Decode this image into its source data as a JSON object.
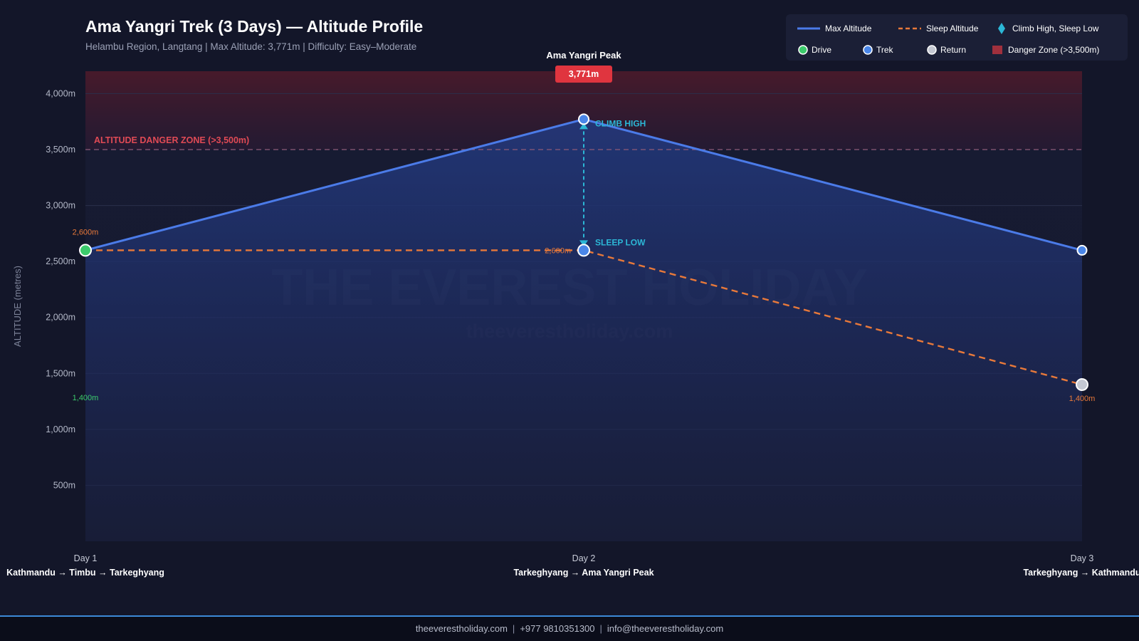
{
  "chart_data": {
    "type": "line",
    "title": "Ama Yangri Trek (3 Days) — Altitude Profile",
    "subtitle": "Helambu Region, Langtang | Max Altitude: 3,771m | Difficulty: Easy–Moderate",
    "ylabel": "ALTITUDE (metres)",
    "ylim": [
      0,
      4200
    ],
    "yticks": [
      500,
      1000,
      1500,
      2000,
      2500,
      3000,
      3500,
      4000
    ],
    "ytick_labels": [
      "500m",
      "1,000m",
      "1,500m",
      "2,000m",
      "2,500m",
      "3,000m",
      "3,500m",
      "4,000m"
    ],
    "grid": true,
    "legend_position": "top-right",
    "categories": [
      "Day 1",
      "Day 2",
      "Day 3"
    ],
    "routes": [
      "Kathmandu → Timbu → Tarkeghyang",
      "Tarkeghyang → Ama Yangri Peak",
      "Tarkeghyang → Kathmandu"
    ],
    "series": [
      {
        "name": "Max Altitude",
        "values": [
          2600,
          3771,
          2600
        ],
        "color": "#4b7be8",
        "style": "solid"
      },
      {
        "name": "Sleep Altitude",
        "values": [
          2600,
          2600,
          1400
        ],
        "color": "#e8793a",
        "style": "dashed"
      }
    ],
    "day_types": [
      "drive",
      "trek",
      "return"
    ],
    "danger_zone": {
      "threshold": 3500,
      "label": "ALTITUDE DANGER ZONE (>3,500m)",
      "color": "#e04a55"
    },
    "peak": {
      "index": 1,
      "name": "Ama Yangri Peak",
      "value_label": "3,771m"
    },
    "climb_high_sleep_low": {
      "index": 1,
      "high_label": "CLIMB HIGH",
      "low_label": "SLEEP LOW",
      "color": "#2cb7d6"
    },
    "annotations": [
      {
        "index": 0,
        "text": "2,600m",
        "color": "#e8793a"
      },
      {
        "index": 0,
        "text": "1,400m",
        "color": "#3ccb6c"
      },
      {
        "index": 1,
        "text": "2,600m",
        "color": "#e8793a"
      },
      {
        "index": 2,
        "text": "1,400m",
        "color": "#e8793a"
      }
    ],
    "legend": [
      {
        "label": "Max Altitude",
        "kind": "line",
        "color": "#4b7be8"
      },
      {
        "label": "Sleep Altitude",
        "kind": "dash",
        "color": "#e8793a"
      },
      {
        "label": "Climb High, Sleep Low",
        "kind": "diamond",
        "color": "#2cb7d6"
      },
      {
        "label": "Drive",
        "kind": "dot",
        "color": "#3ccb6c"
      },
      {
        "label": "Trek",
        "kind": "dot",
        "color": "#4a86e8"
      },
      {
        "label": "Return",
        "kind": "dot",
        "color": "#c4c8d2"
      },
      {
        "label": "Danger Zone (>3,500m)",
        "kind": "square",
        "color": "#a0303d"
      }
    ],
    "watermark": {
      "main": "THE EVEREST HOLIDAY",
      "sub": "theeverestholiday.com"
    },
    "colors": {
      "drive": "#3ccb6c",
      "trek": "#4a86e8",
      "return": "#c4c8d2",
      "background": "#131629"
    }
  },
  "footer": {
    "website": "theeverestholiday.com",
    "separator": "|",
    "phone": "+977 9810351300",
    "email": "info@theeverestholiday.com"
  }
}
